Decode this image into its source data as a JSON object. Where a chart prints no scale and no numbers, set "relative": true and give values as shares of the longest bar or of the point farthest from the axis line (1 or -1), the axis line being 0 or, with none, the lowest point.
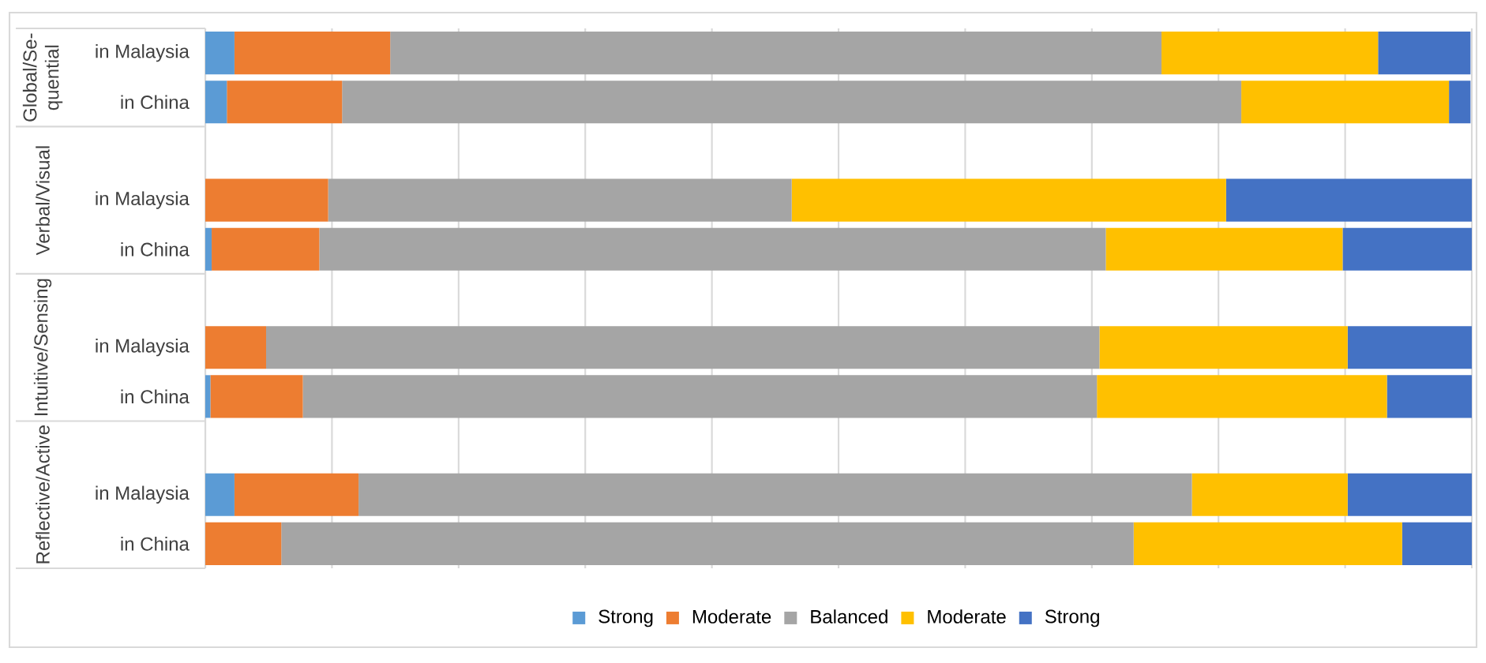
{
  "chart_data": {
    "type": "bar",
    "orientation": "horizontal",
    "stacked": true,
    "relative": true,
    "grid": "x",
    "legend": "bottom",
    "categories": [
      "in Malaysia",
      "in China",
      null,
      "in Malaysia",
      "in China",
      null,
      "in Malaysia",
      "in China",
      null,
      "in Malaysia",
      "in China"
    ],
    "annotations": [
      "Global/Se-quential",
      "Verbal/Visual",
      "Intuitive/Sensing",
      "Reflective/Active"
    ],
    "series": [
      {
        "name": "Strong",
        "color": "#5b9bd5",
        "values": [
          0.023,
          0.017,
          null,
          0,
          0.005,
          null,
          0,
          0.004,
          null,
          0.023,
          0
        ]
      },
      {
        "name": "Moderate",
        "color": "#ed7d31",
        "values": [
          0.123,
          0.091,
          null,
          0.097,
          0.085,
          null,
          0.048,
          0.073,
          null,
          0.098,
          0.06
        ]
      },
      {
        "name": "Balanced",
        "color": "#a5a5a5",
        "values": [
          0.609,
          0.71,
          null,
          0.366,
          0.621,
          null,
          0.658,
          0.627,
          null,
          0.658,
          0.673
        ]
      },
      {
        "name": "Moderate",
        "color": "#ffc000",
        "values": [
          0.171,
          0.164,
          null,
          0.343,
          0.187,
          null,
          0.196,
          0.229,
          null,
          0.123,
          0.212
        ]
      },
      {
        "name": "Strong",
        "color": "#4472c4",
        "values": [
          0.073,
          0.017,
          null,
          0.194,
          0.102,
          null,
          0.098,
          0.067,
          null,
          0.098,
          0.055
        ]
      }
    ]
  }
}
